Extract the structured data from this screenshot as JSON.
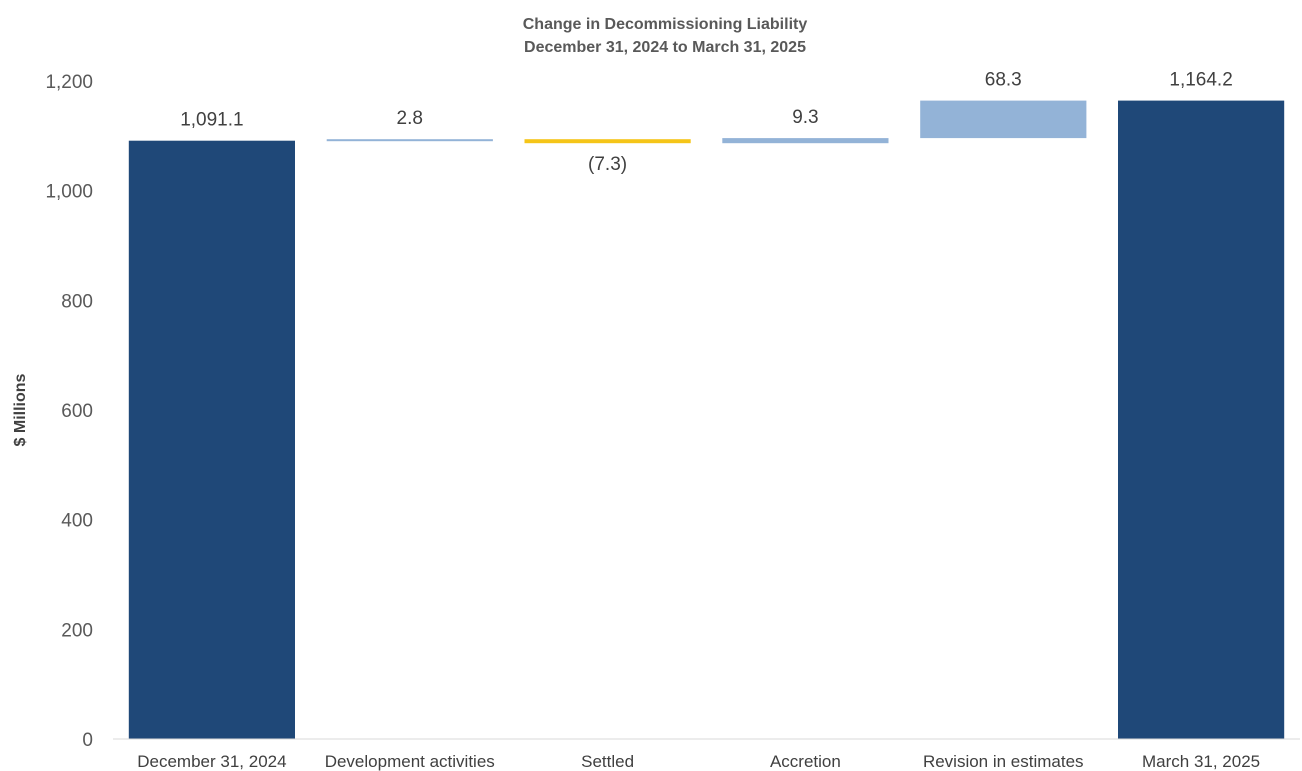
{
  "chart_data": {
    "type": "bar",
    "subtype": "waterfall",
    "title": "Change in Decommissioning Liability",
    "subtitle": "December 31, 2024 to March 31, 2025",
    "ylabel": "$ Millions",
    "xlabel": "",
    "ylim": [
      0,
      1200
    ],
    "yticks": [
      0,
      200,
      400,
      600,
      800,
      "1,000",
      "1,200"
    ],
    "ytick_labels": [
      "0",
      "200",
      "400",
      "600",
      "800",
      "1,000",
      "1,200"
    ],
    "grid": false,
    "legend": "none",
    "categories": [
      "December 31, 2024",
      "Development activities",
      "Settled",
      "Accretion",
      "Revision in estimates",
      "March 31, 2025"
    ],
    "bars": [
      {
        "category": "December 31, 2024",
        "kind": "total",
        "value": 1091.1,
        "label": "1,091.1",
        "color": "#1f4878"
      },
      {
        "category": "Development activities",
        "kind": "change",
        "value": 2.8,
        "label": "2.8",
        "color": "#93b3d7"
      },
      {
        "category": "Settled",
        "kind": "change",
        "value": -7.3,
        "label": "(7.3)",
        "color": "#f5c518"
      },
      {
        "category": "Accretion",
        "kind": "change",
        "value": 9.3,
        "label": "9.3",
        "color": "#93b3d7"
      },
      {
        "category": "Revision in estimates",
        "kind": "change",
        "value": 68.3,
        "label": "68.3",
        "color": "#93b3d7"
      },
      {
        "category": "March 31, 2025",
        "kind": "total",
        "value": 1164.2,
        "label": "1,164.2",
        "color": "#1f4878"
      }
    ]
  }
}
